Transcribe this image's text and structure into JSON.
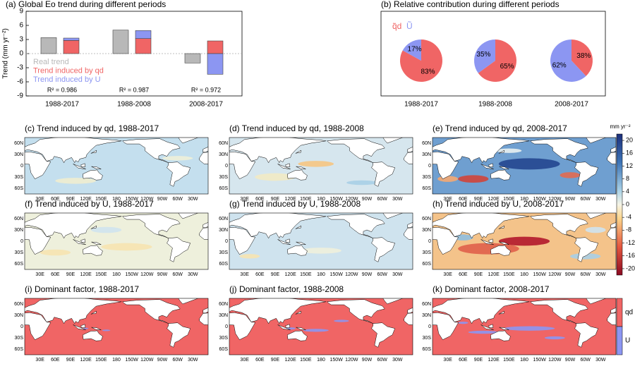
{
  "chart_data": [
    {
      "type": "bar",
      "title": "(a) Global Eo trend during different periods",
      "y_label": "Trend (mm yr⁻²)",
      "categories": [
        "1988-2017",
        "1988-2008",
        "2008-2017"
      ],
      "ylim": [
        -9,
        9
      ],
      "yticks": [
        -9,
        -6,
        -3,
        0,
        3,
        6,
        9
      ],
      "series": [
        {
          "name": "Real trend",
          "color": "#b8b8b8",
          "values": [
            3.4,
            5.0,
            -2.0
          ]
        },
        {
          "name": "Trend induced by qd",
          "color": "#f06565",
          "values": [
            2.8,
            3.2,
            2.7
          ]
        },
        {
          "name": "Trend induced by U",
          "color": "#8c96f2",
          "values": [
            0.5,
            1.7,
            -4.4
          ]
        }
      ],
      "annotations": [
        "R² = 0.986",
        "R² = 0.987",
        "R² = 0.972"
      ]
    },
    {
      "type": "pie",
      "title": "(b) Relative contribution during different periods",
      "labels": [
        "q̃d",
        "Ũ"
      ],
      "colors": [
        "#f06565",
        "#8c96f2"
      ],
      "pies": [
        {
          "name": "1988-2017",
          "values": [
            83,
            17
          ],
          "value_labels": [
            "83%",
            "17%"
          ]
        },
        {
          "name": "1988-2008",
          "values": [
            65,
            35
          ],
          "value_labels": [
            "65%",
            "35%"
          ]
        },
        {
          "name": "2008-2017",
          "values": [
            38,
            62
          ],
          "value_labels": [
            "38%",
            "62%"
          ]
        }
      ]
    },
    {
      "type": "map",
      "lat_labels": [
        "60N",
        "30N",
        "0",
        "30S",
        "60S"
      ],
      "lon_labels": [
        "30E",
        "60E",
        "90E",
        "120E",
        "150E",
        "180",
        "150W",
        "120W",
        "90W",
        "60W",
        "30W"
      ],
      "panels": [
        {
          "title": "(c) Trend induced by qd, 1988-2017"
        },
        {
          "title": "(d) Trend induced by qd, 1988-2008"
        },
        {
          "title": "(e) Trend induced by qd, 2008-2017"
        },
        {
          "title": "(f) Trend induced by U, 1988-2017"
        },
        {
          "title": "(g) Trend induced by U, 1988-2008"
        },
        {
          "title": "(h) Trend induced by U, 2008-2017"
        },
        {
          "title": "(i) Dominant factor, 1988-2017"
        },
        {
          "title": "(j) Dominant factor, 1988-2008"
        },
        {
          "title": "(k) Dominant factor, 2008-2017"
        }
      ],
      "colorbar": {
        "label": "mm yr⁻²",
        "lim": [
          -22,
          22
        ],
        "ticks": [
          20,
          16,
          12,
          8,
          4,
          0,
          -4,
          -8,
          -12,
          -16,
          -20
        ]
      },
      "factor_colorbar": {
        "labels": [
          "qd",
          "U"
        ],
        "colors": [
          "#f06565",
          "#8c96f2"
        ]
      }
    }
  ]
}
